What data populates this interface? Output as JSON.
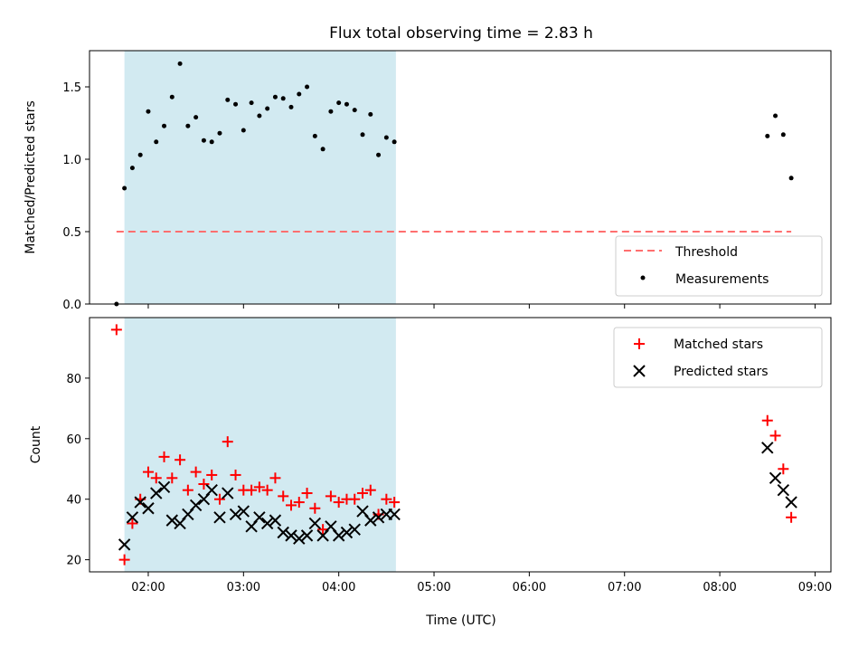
{
  "chart_data": [
    {
      "type": "scatter",
      "title": "Flux total observing time = 2.83 h",
      "xlabel": "",
      "ylabel": "Matched/Predicted stars",
      "ylim": [
        0,
        1.75
      ],
      "xlim": [
        "01:23",
        "09:10"
      ],
      "xticks": [
        "02:00",
        "03:00",
        "04:00",
        "05:00",
        "06:00",
        "07:00",
        "08:00",
        "09:00"
      ],
      "yticks": [
        0.0,
        0.5,
        1.0,
        1.5
      ],
      "ytick_labels": [
        "0.0",
        "0.5",
        "1.0",
        "1.5"
      ],
      "grid": false,
      "legend_position": "lower-right",
      "shaded_region": {
        "start": "01:45",
        "end": "04:36",
        "color": "#add8e6"
      },
      "threshold": {
        "name": "Threshold",
        "value": 0.5,
        "start": "01:40",
        "end": "08:45",
        "color": "#ff6f6f"
      },
      "series": [
        {
          "name": "Measurements",
          "color": "#000000",
          "x": [
            "01:40",
            "01:45",
            "01:50",
            "01:55",
            "02:00",
            "02:05",
            "02:10",
            "02:15",
            "02:20",
            "02:25",
            "02:30",
            "02:35",
            "02:40",
            "02:45",
            "02:50",
            "02:55",
            "03:00",
            "03:05",
            "03:10",
            "03:15",
            "03:20",
            "03:25",
            "03:30",
            "03:35",
            "03:40",
            "03:45",
            "03:50",
            "03:55",
            "04:00",
            "04:05",
            "04:10",
            "04:15",
            "04:20",
            "04:25",
            "04:30",
            "04:35",
            "08:30",
            "08:35",
            "08:40",
            "08:45"
          ],
          "values": [
            0.0,
            0.8,
            0.94,
            1.03,
            1.33,
            1.12,
            1.23,
            1.43,
            1.66,
            1.23,
            1.29,
            1.13,
            1.12,
            1.18,
            1.41,
            1.38,
            1.2,
            1.39,
            1.3,
            1.35,
            1.43,
            1.42,
            1.36,
            1.45,
            1.5,
            1.16,
            1.07,
            1.33,
            1.39,
            1.38,
            1.34,
            1.17,
            1.31,
            1.03,
            1.15,
            1.12,
            1.16,
            1.3,
            1.17,
            0.87
          ]
        }
      ],
      "legend_entries": [
        "Threshold",
        "Measurements"
      ]
    },
    {
      "type": "scatter",
      "title": "",
      "xlabel": "Time (UTC)",
      "ylabel": "Count",
      "ylim": [
        16,
        100
      ],
      "xlim": [
        "01:23",
        "09:10"
      ],
      "xticks": [
        "02:00",
        "03:00",
        "04:00",
        "05:00",
        "06:00",
        "07:00",
        "08:00",
        "09:00"
      ],
      "yticks": [
        20,
        40,
        60,
        80
      ],
      "grid": false,
      "legend_position": "upper-right",
      "shaded_region": {
        "start": "01:45",
        "end": "04:36",
        "color": "#add8e6"
      },
      "series": [
        {
          "name": "Matched stars",
          "color": "#ff0000",
          "marker": "plus",
          "x": [
            "01:40",
            "01:45",
            "01:50",
            "01:55",
            "02:00",
            "02:05",
            "02:10",
            "02:15",
            "02:20",
            "02:25",
            "02:30",
            "02:35",
            "02:40",
            "02:45",
            "02:50",
            "02:55",
            "03:00",
            "03:05",
            "03:10",
            "03:15",
            "03:20",
            "03:25",
            "03:30",
            "03:35",
            "03:40",
            "03:45",
            "03:50",
            "03:55",
            "04:00",
            "04:05",
            "04:10",
            "04:15",
            "04:20",
            "04:25",
            "04:30",
            "04:35",
            "08:30",
            "08:35",
            "08:40",
            "08:45"
          ],
          "values": [
            96,
            20,
            32,
            40,
            49,
            47,
            54,
            47,
            53,
            43,
            49,
            45,
            48,
            40,
            59,
            48,
            43,
            43,
            44,
            43,
            47,
            41,
            38,
            39,
            42,
            37,
            30,
            41,
            39,
            40,
            40,
            42,
            43,
            35,
            40,
            39,
            66,
            61,
            50,
            34
          ]
        },
        {
          "name": "Predicted stars",
          "color": "#000000",
          "marker": "x",
          "x": [
            "01:45",
            "01:50",
            "01:55",
            "02:00",
            "02:05",
            "02:10",
            "02:15",
            "02:20",
            "02:25",
            "02:30",
            "02:35",
            "02:40",
            "02:45",
            "02:50",
            "02:55",
            "03:00",
            "03:05",
            "03:10",
            "03:15",
            "03:20",
            "03:25",
            "03:30",
            "03:35",
            "03:40",
            "03:45",
            "03:50",
            "03:55",
            "04:00",
            "04:05",
            "04:10",
            "04:15",
            "04:20",
            "04:25",
            "04:30",
            "04:35",
            "08:30",
            "08:35",
            "08:40",
            "08:45"
          ],
          "values": [
            25,
            34,
            39,
            37,
            42,
            44,
            33,
            32,
            35,
            38,
            40,
            43,
            34,
            42,
            35,
            36,
            31,
            34,
            32,
            33,
            29,
            28,
            27,
            28,
            32,
            28,
            31,
            28,
            29,
            30,
            36,
            33,
            34,
            35,
            35,
            57,
            47,
            43,
            39
          ]
        }
      ],
      "legend_entries": [
        "Matched stars",
        "Predicted stars"
      ]
    }
  ]
}
